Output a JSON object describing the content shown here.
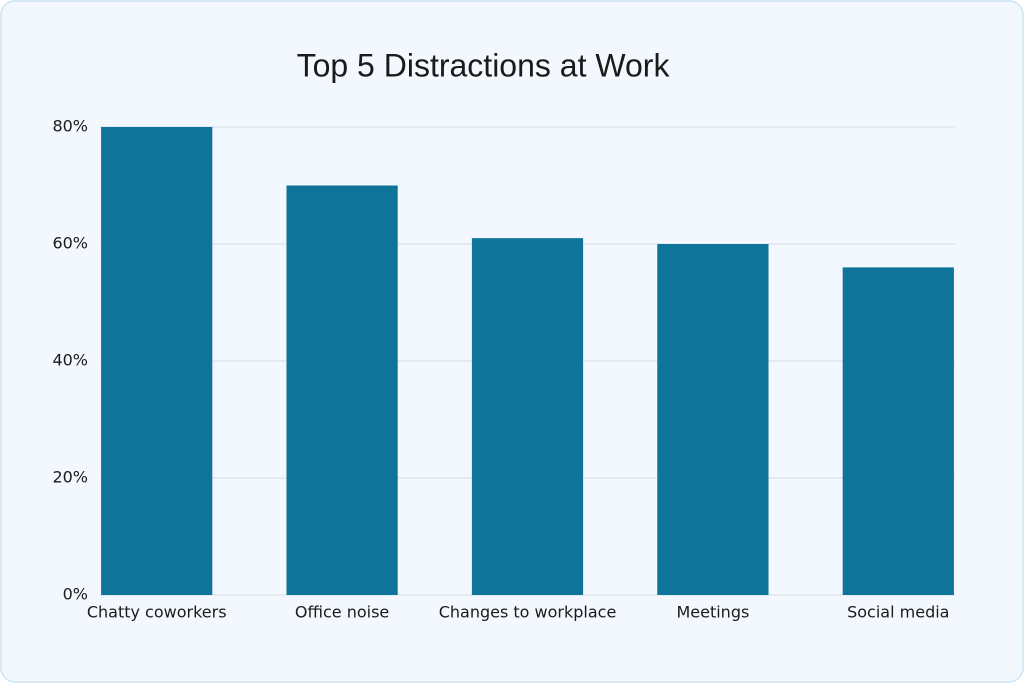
{
  "chart_data": {
    "type": "bar",
    "title": "Top 5 Distractions at Work",
    "categories": [
      "Chatty coworkers",
      "Office noise",
      "Changes to workplace",
      "Meetings",
      "Social media"
    ],
    "values": [
      80,
      70,
      61,
      60,
      56
    ],
    "color": "#0e7499",
    "ylim": [
      0,
      80
    ],
    "yticks": [
      {
        "value": 0,
        "label": "0%"
      },
      {
        "value": 20,
        "label": "20%"
      },
      {
        "value": 40,
        "label": "40%"
      },
      {
        "value": 60,
        "label": "60%"
      },
      {
        "value": 80,
        "label": "80%"
      }
    ],
    "grid": true
  }
}
